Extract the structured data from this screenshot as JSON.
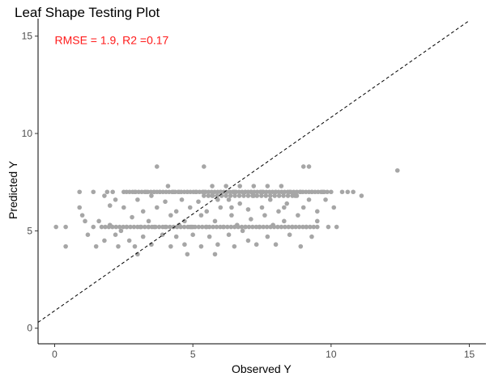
{
  "chart_data": {
    "type": "scatter",
    "title": "Leaf Shape Testing Plot",
    "xlabel": "Observed Y",
    "ylabel": "Predicted Y",
    "xlim": [
      -0.6,
      15.6
    ],
    "ylim": [
      -0.8,
      15.9
    ],
    "x_ticks": [
      0,
      5,
      10,
      15
    ],
    "y_ticks": [
      0,
      5,
      10,
      15
    ],
    "grid": false,
    "point_color": "#a6a6a6",
    "reference_line": {
      "style": "dashed",
      "from": [
        -0.6,
        0.3
      ],
      "to": [
        15,
        15.8
      ]
    },
    "annotation": {
      "text": "RMSE = 1.9, R2 =0.17",
      "x": 0.0,
      "y": 14.8,
      "color": "#ff1a1a"
    },
    "points": [
      [
        0.05,
        5.2
      ],
      [
        0.4,
        5.2
      ],
      [
        0.4,
        4.2
      ],
      [
        0.9,
        7.0
      ],
      [
        0.9,
        6.2
      ],
      [
        1.0,
        5.8
      ],
      [
        1.1,
        5.5
      ],
      [
        1.2,
        4.8
      ],
      [
        1.4,
        7.0
      ],
      [
        1.4,
        5.2
      ],
      [
        1.5,
        4.2
      ],
      [
        1.6,
        5.5
      ],
      [
        1.8,
        6.8
      ],
      [
        1.8,
        4.5
      ],
      [
        1.9,
        7.0
      ],
      [
        2.0,
        6.3
      ],
      [
        2.0,
        5.3
      ],
      [
        2.2,
        6.6
      ],
      [
        2.2,
        4.8
      ],
      [
        2.3,
        4.2
      ],
      [
        2.4,
        5.0
      ],
      [
        2.5,
        7.0
      ],
      [
        2.5,
        6.2
      ],
      [
        2.6,
        5.2
      ],
      [
        2.7,
        4.5
      ],
      [
        2.8,
        5.7
      ],
      [
        2.9,
        7.0
      ],
      [
        2.9,
        4.2
      ],
      [
        3.0,
        6.6
      ],
      [
        3.0,
        3.8
      ],
      [
        3.1,
        5.2
      ],
      [
        3.2,
        6.0
      ],
      [
        3.2,
        4.7
      ],
      [
        3.3,
        7.0
      ],
      [
        3.4,
        5.5
      ],
      [
        3.5,
        6.8
      ],
      [
        3.5,
        4.3
      ],
      [
        3.6,
        5.2
      ],
      [
        3.7,
        6.2
      ],
      [
        3.7,
        8.3
      ],
      [
        3.8,
        7.0
      ],
      [
        3.9,
        4.8
      ],
      [
        4.0,
        6.5
      ],
      [
        4.0,
        5.2
      ],
      [
        4.1,
        7.3
      ],
      [
        4.2,
        5.8
      ],
      [
        4.2,
        4.2
      ],
      [
        4.3,
        7.0
      ],
      [
        4.4,
        6.0
      ],
      [
        4.4,
        4.7
      ],
      [
        4.5,
        5.3
      ],
      [
        4.5,
        7.0
      ],
      [
        4.6,
        6.6
      ],
      [
        4.7,
        4.3
      ],
      [
        4.7,
        5.5
      ],
      [
        4.8,
        7.0
      ],
      [
        4.8,
        3.8
      ],
      [
        4.9,
        6.2
      ],
      [
        5.0,
        5.2
      ],
      [
        5.0,
        4.8
      ],
      [
        5.1,
        7.0
      ],
      [
        5.2,
        6.5
      ],
      [
        5.3,
        4.2
      ],
      [
        5.3,
        5.8
      ],
      [
        5.4,
        8.3
      ],
      [
        5.4,
        7.0
      ],
      [
        5.5,
        5.2
      ],
      [
        5.5,
        6.0
      ],
      [
        5.6,
        4.7
      ],
      [
        5.7,
        7.3
      ],
      [
        5.7,
        6.8
      ],
      [
        5.8,
        3.8
      ],
      [
        5.8,
        5.5
      ],
      [
        5.9,
        4.3
      ],
      [
        6.0,
        7.0
      ],
      [
        6.0,
        6.2
      ],
      [
        6.1,
        5.2
      ],
      [
        6.2,
        7.3
      ],
      [
        6.3,
        4.8
      ],
      [
        6.3,
        6.6
      ],
      [
        6.4,
        5.8
      ],
      [
        6.5,
        7.0
      ],
      [
        6.5,
        4.2
      ],
      [
        6.6,
        5.3
      ],
      [
        6.7,
        6.4
      ],
      [
        6.7,
        7.3
      ],
      [
        6.8,
        5.0
      ],
      [
        6.9,
        7.0
      ],
      [
        7.0,
        6.1
      ],
      [
        7.0,
        4.5
      ],
      [
        7.1,
        5.6
      ],
      [
        7.2,
        7.3
      ],
      [
        7.2,
        6.8
      ],
      [
        7.3,
        4.3
      ],
      [
        7.4,
        5.2
      ],
      [
        7.5,
        7.0
      ],
      [
        7.5,
        6.2
      ],
      [
        7.6,
        5.8
      ],
      [
        7.7,
        7.3
      ],
      [
        7.7,
        4.7
      ],
      [
        7.8,
        6.6
      ],
      [
        7.9,
        5.3
      ],
      [
        8.0,
        7.0
      ],
      [
        8.0,
        4.3
      ],
      [
        8.1,
        6.0
      ],
      [
        8.2,
        7.3
      ],
      [
        8.3,
        5.5
      ],
      [
        8.4,
        6.4
      ],
      [
        8.5,
        7.0
      ],
      [
        8.5,
        4.8
      ],
      [
        8.6,
        5.2
      ],
      [
        8.7,
        6.8
      ],
      [
        8.8,
        5.8
      ],
      [
        8.9,
        7.0
      ],
      [
        8.9,
        4.2
      ],
      [
        9.0,
        6.2
      ],
      [
        9.0,
        8.3
      ],
      [
        9.1,
        5.2
      ],
      [
        9.2,
        8.3
      ],
      [
        9.2,
        6.6
      ],
      [
        9.3,
        7.0
      ],
      [
        9.3,
        4.7
      ],
      [
        9.5,
        6.0
      ],
      [
        9.5,
        5.5
      ],
      [
        9.7,
        7.0
      ],
      [
        9.8,
        6.6
      ],
      [
        9.9,
        5.2
      ],
      [
        10.0,
        7.0
      ],
      [
        10.1,
        6.2
      ],
      [
        10.2,
        5.2
      ],
      [
        10.4,
        7.0
      ],
      [
        10.6,
        7.0
      ],
      [
        10.8,
        7.0
      ],
      [
        11.1,
        6.8
      ],
      [
        12.4,
        8.1
      ],
      [
        3.6,
        7.0
      ],
      [
        4.9,
        5.2
      ],
      [
        6.4,
        6.2
      ],
      [
        7.1,
        7.0
      ],
      [
        8.3,
        6.2
      ],
      [
        2.1,
        7.0
      ],
      [
        3.4,
        5.2
      ],
      [
        5.9,
        6.6
      ],
      [
        6.9,
        5.2
      ]
    ],
    "bands": [
      {
        "y": 7.0,
        "from": 2.6,
        "to": 9.9,
        "step": 0.11
      },
      {
        "y": 5.2,
        "from": 1.7,
        "to": 9.6,
        "step": 0.13
      },
      {
        "y": 6.8,
        "from": 5.4,
        "to": 8.9,
        "step": 0.16
      }
    ]
  }
}
